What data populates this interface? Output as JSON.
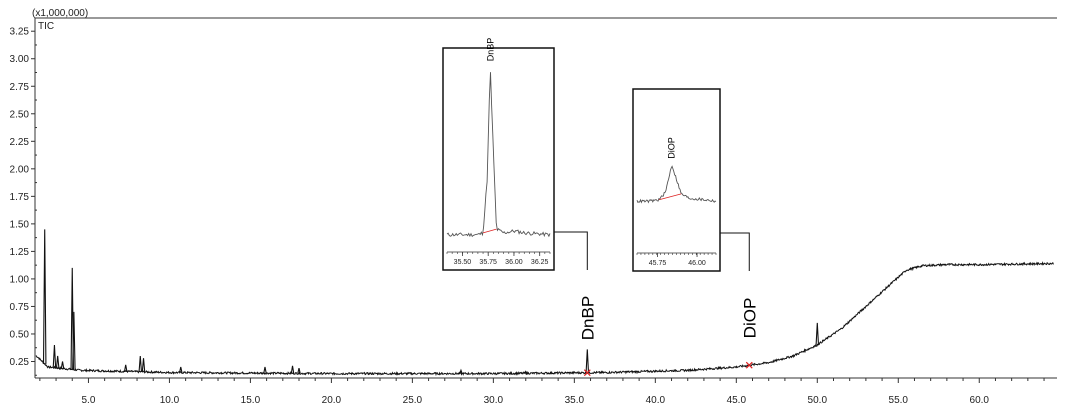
{
  "chart_data": {
    "type": "line",
    "scale_label": "(x1,000,000)",
    "trace_label": "TIC",
    "xlim": [
      1.7,
      64.8
    ],
    "ylim": [
      0.1,
      3.37
    ],
    "x_ticks": [
      "5.0",
      "10.0",
      "15.0",
      "20.0",
      "25.0",
      "30.0",
      "35.0",
      "40.0",
      "45.0",
      "50.0",
      "55.0",
      "60.0"
    ],
    "x_tick_values": [
      5,
      10,
      15,
      20,
      25,
      30,
      35,
      40,
      45,
      50,
      55,
      60
    ],
    "y_ticks": [
      "0.25",
      "0.50",
      "0.75",
      "1.00",
      "1.25",
      "1.50",
      "1.75",
      "2.00",
      "2.25",
      "2.50",
      "2.75",
      "3.00",
      "3.25"
    ],
    "y_tick_values": [
      0.25,
      0.5,
      0.75,
      1.0,
      1.25,
      1.5,
      1.75,
      2.0,
      2.25,
      2.5,
      2.75,
      3.0,
      3.25
    ],
    "baseline": [
      [
        1.8,
        0.3
      ],
      [
        2.5,
        0.2
      ],
      [
        4.5,
        0.17
      ],
      [
        10,
        0.15
      ],
      [
        20,
        0.14
      ],
      [
        30,
        0.14
      ],
      [
        37,
        0.15
      ],
      [
        42,
        0.17
      ],
      [
        45,
        0.2
      ],
      [
        47,
        0.24
      ],
      [
        48.5,
        0.3
      ],
      [
        50,
        0.4
      ],
      [
        51.5,
        0.55
      ],
      [
        53,
        0.75
      ],
      [
        54.5,
        0.95
      ],
      [
        55.5,
        1.08
      ],
      [
        56.5,
        1.12
      ],
      [
        58,
        1.13
      ],
      [
        60,
        1.13
      ],
      [
        64.5,
        1.14
      ]
    ],
    "spikes": [
      [
        2.3,
        1.45
      ],
      [
        2.9,
        0.4
      ],
      [
        3.1,
        0.3
      ],
      [
        3.4,
        0.25
      ],
      [
        4.0,
        1.1
      ],
      [
        4.1,
        0.7
      ],
      [
        7.3,
        0.22
      ],
      [
        8.2,
        0.3
      ],
      [
        8.4,
        0.28
      ],
      [
        10.7,
        0.2
      ],
      [
        15.9,
        0.2
      ],
      [
        17.6,
        0.21
      ],
      [
        18.0,
        0.19
      ],
      [
        28.0,
        0.17
      ],
      [
        32.0,
        0.16
      ],
      [
        35.8,
        0.36
      ],
      [
        50.0,
        0.6
      ]
    ],
    "annotations": [
      {
        "label": "DnBP",
        "x": 35.8
      },
      {
        "label": "DiOP",
        "x": 45.8
      }
    ],
    "insets": [
      {
        "label": "DnBP",
        "x_ticks": [
          "35.50",
          "35.75",
          "36.00",
          "36.25"
        ],
        "x_tick_values": [
          35.5,
          35.75,
          36.0,
          36.25
        ],
        "xlim": [
          35.35,
          36.35
        ],
        "ylim": [
          0.0,
          1.0
        ],
        "series": [
          [
            35.35,
            0.05
          ],
          [
            35.5,
            0.05
          ],
          [
            35.65,
            0.05
          ],
          [
            35.7,
            0.06
          ],
          [
            35.74,
            0.35
          ],
          [
            35.77,
            0.95
          ],
          [
            35.8,
            0.5
          ],
          [
            35.83,
            0.08
          ],
          [
            35.9,
            0.06
          ],
          [
            36.0,
            0.07
          ],
          [
            36.1,
            0.06
          ],
          [
            36.35,
            0.05
          ]
        ]
      },
      {
        "label": "DiOP",
        "x_ticks": [
          "45.75",
          "46.00"
        ],
        "x_tick_values": [
          45.75,
          46.0
        ],
        "xlim": [
          45.62,
          46.12
        ],
        "ylim": [
          0.0,
          1.0
        ],
        "series": [
          [
            45.62,
            0.3
          ],
          [
            45.7,
            0.3
          ],
          [
            45.76,
            0.31
          ],
          [
            45.8,
            0.36
          ],
          [
            45.84,
            0.55
          ],
          [
            45.87,
            0.45
          ],
          [
            45.9,
            0.35
          ],
          [
            45.95,
            0.32
          ],
          [
            46.05,
            0.31
          ],
          [
            46.12,
            0.3
          ]
        ]
      }
    ]
  }
}
